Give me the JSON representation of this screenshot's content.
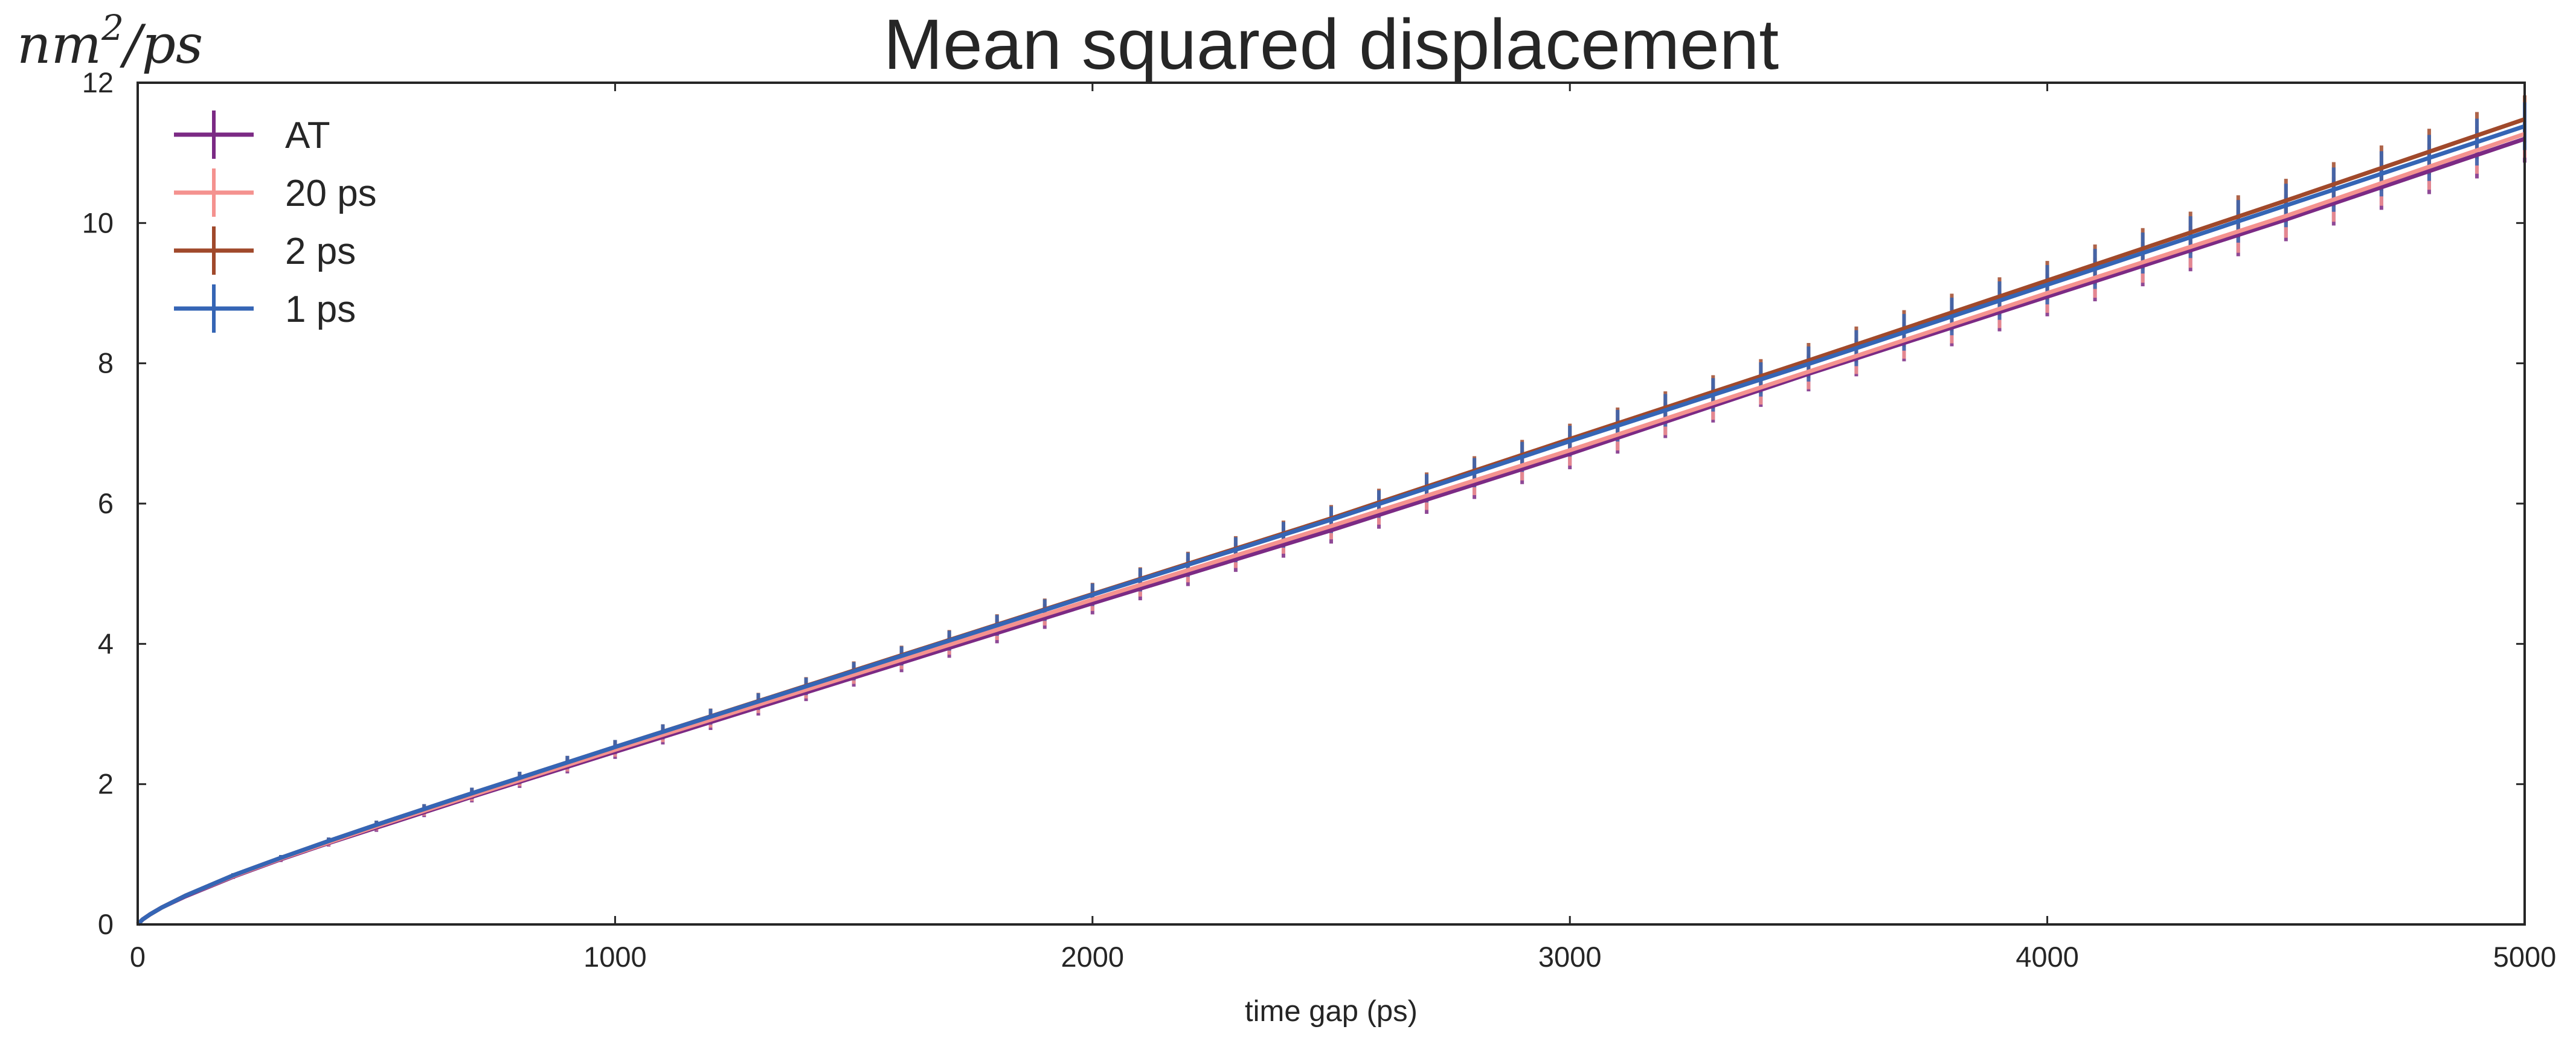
{
  "chart_data": {
    "type": "line",
    "title": "Mean squared displacement",
    "y_unit_label": {
      "base": "nm",
      "superscript": "2",
      "suffix": "/ps"
    },
    "xlabel": "time gap (ps)",
    "ylabel": "",
    "xlim": [
      0,
      5000
    ],
    "ylim": [
      0,
      12
    ],
    "x_ticks": [
      0,
      1000,
      2000,
      3000,
      4000,
      5000
    ],
    "x_tick_labels": [
      "0",
      "1000",
      "2000",
      "3000",
      "4000",
      "5000"
    ],
    "y_ticks": [
      0,
      2,
      4,
      6,
      8,
      10,
      12
    ],
    "y_tick_labels": [
      "0",
      "2",
      "4",
      "6",
      "8",
      "10",
      "12"
    ],
    "grid": false,
    "legend_position": "top-left",
    "error_bar_spacing": 100,
    "x": [
      0,
      10,
      25,
      50,
      100,
      200,
      300,
      400,
      500,
      700,
      1000,
      1500,
      2000,
      2500,
      3000,
      3500,
      4000,
      4500,
      5000
    ],
    "series": [
      {
        "name": "AT",
        "color": "#7b2a84",
        "values": [
          0.0,
          0.07,
          0.14,
          0.24,
          0.4,
          0.68,
          0.93,
          1.16,
          1.38,
          1.82,
          2.46,
          3.52,
          4.58,
          5.62,
          6.71,
          7.85,
          8.95,
          10.05,
          11.2
        ],
        "error": [
          0.0,
          0.0,
          0.0,
          0.01,
          0.02,
          0.03,
          0.04,
          0.05,
          0.06,
          0.08,
          0.1,
          0.13,
          0.16,
          0.19,
          0.22,
          0.25,
          0.28,
          0.31,
          0.34
        ]
      },
      {
        "name": "20 ps",
        "color": "#f4928f",
        "values": [
          0.0,
          0.07,
          0.14,
          0.24,
          0.41,
          0.69,
          0.94,
          1.17,
          1.4,
          1.84,
          2.49,
          3.56,
          4.63,
          5.68,
          6.76,
          7.88,
          9.0,
          10.1,
          11.27
        ],
        "error": [
          0.0,
          0.0,
          0.0,
          0.01,
          0.02,
          0.03,
          0.04,
          0.05,
          0.06,
          0.08,
          0.1,
          0.13,
          0.16,
          0.19,
          0.22,
          0.25,
          0.28,
          0.31,
          0.34
        ]
      },
      {
        "name": "2 ps",
        "color": "#a0492b",
        "values": [
          0.0,
          0.07,
          0.14,
          0.24,
          0.41,
          0.7,
          0.95,
          1.19,
          1.42,
          1.87,
          2.53,
          3.62,
          4.71,
          5.79,
          6.92,
          8.04,
          9.18,
          10.32,
          11.48
        ],
        "error": [
          0.0,
          0.0,
          0.0,
          0.01,
          0.02,
          0.03,
          0.04,
          0.05,
          0.06,
          0.08,
          0.1,
          0.13,
          0.16,
          0.19,
          0.22,
          0.25,
          0.28,
          0.31,
          0.34
        ]
      },
      {
        "name": "1 ps",
        "color": "#3565b5",
        "values": [
          0.0,
          0.07,
          0.14,
          0.24,
          0.41,
          0.7,
          0.95,
          1.19,
          1.42,
          1.87,
          2.53,
          3.61,
          4.7,
          5.77,
          6.89,
          7.99,
          9.12,
          10.25,
          11.38
        ],
        "error": [
          0.0,
          0.0,
          0.0,
          0.01,
          0.02,
          0.03,
          0.04,
          0.05,
          0.06,
          0.08,
          0.1,
          0.13,
          0.16,
          0.19,
          0.22,
          0.25,
          0.28,
          0.31,
          0.34
        ]
      }
    ]
  }
}
